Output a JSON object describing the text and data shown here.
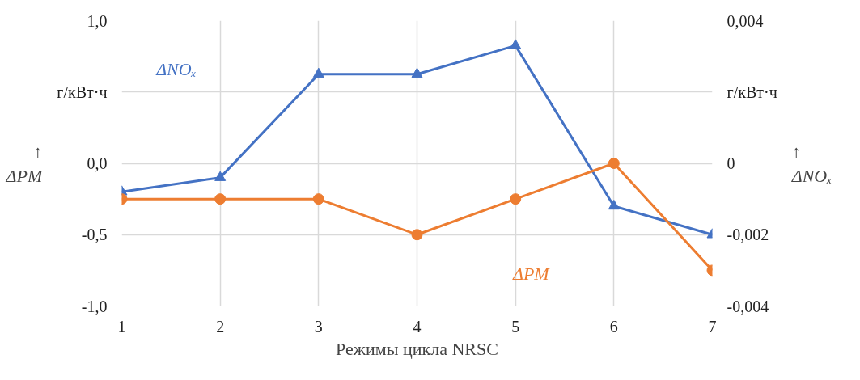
{
  "chart_data": {
    "type": "line",
    "xlabel": "Режимы цикла NRSC",
    "ylabel": "↑ ΔPM",
    "y2label": "↑ ΔNOₓ",
    "x": [
      1,
      2,
      3,
      4,
      5,
      6,
      7
    ],
    "xlim": [
      1,
      7
    ],
    "xticks": [
      1,
      2,
      3,
      4,
      5,
      6,
      7
    ],
    "ylim": [
      -1,
      1
    ],
    "yticks": [
      {
        "value": -1,
        "label": "-1,0"
      },
      {
        "value": -0.5,
        "label": "-0,5"
      },
      {
        "value": 0,
        "label": "0,0"
      },
      {
        "value": 0.5,
        "label": "г/кВт·ч"
      },
      {
        "value": 1,
        "label": "1,0"
      }
    ],
    "y2lim": [
      -0.004,
      0.004
    ],
    "y2ticks": [
      {
        "value": -0.004,
        "label": "-0,004"
      },
      {
        "value": -0.002,
        "label": "-0,002"
      },
      0,
      {
        "value": 0.002,
        "label": "г/кВт·ч"
      },
      {
        "value": 0.004,
        "label": "0,004"
      }
    ],
    "grid": true,
    "legend": false,
    "line_style": "solid",
    "series": [
      {
        "name": "ΔNOₓ",
        "color": "#4472c4",
        "axis": "y2",
        "marker": "triangle",
        "values": [
          -0.0008,
          -0.0004,
          0.0025,
          0.0025,
          0.0033,
          -0.0012,
          -0.002
        ]
      },
      {
        "name": "ΔPM",
        "color": "#ed7d31",
        "marker": "circle",
        "values": [
          -0.25,
          -0.25,
          -0.25,
          -0.5,
          -0.25,
          0,
          -0.75
        ]
      }
    ]
  }
}
